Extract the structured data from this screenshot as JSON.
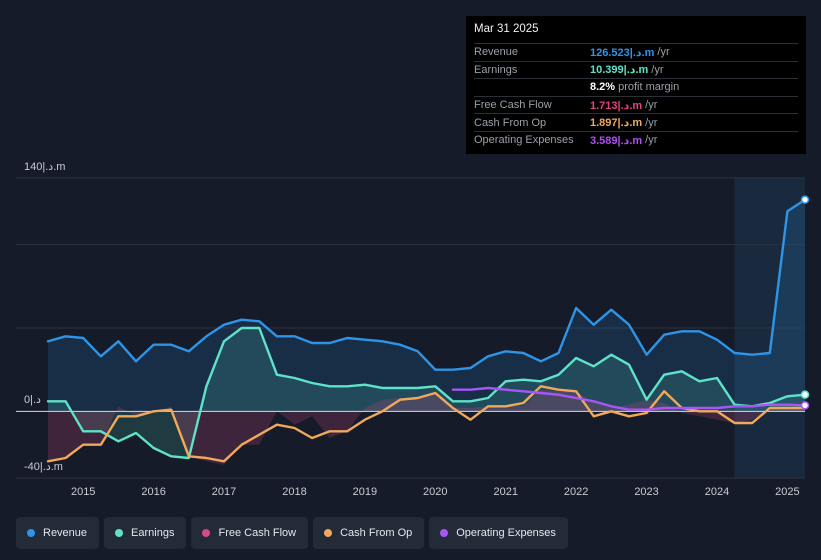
{
  "tooltip": {
    "date": "Mar 31 2025",
    "rows": [
      {
        "label": "Revenue",
        "value": "126.523|.د.m",
        "unit": "/yr",
        "color": "#2e94e8"
      },
      {
        "label": "Earnings",
        "value": "10.399|.د.m",
        "unit": "/yr",
        "color": "#5ee3c9"
      },
      {
        "label": "",
        "value": "8.2%",
        "unit": "profit margin",
        "color": "#ffffff"
      },
      {
        "label": "Free Cash Flow",
        "value": "1.713|.د.m",
        "unit": "/yr",
        "color": "#e0447e"
      },
      {
        "label": "Cash From Op",
        "value": "1.897|.د.m",
        "unit": "/yr",
        "color": "#f0a95c"
      },
      {
        "label": "Operating Expenses",
        "value": "3.589|.د.m",
        "unit": "/yr",
        "color": "#b04ff0"
      }
    ]
  },
  "legend": [
    {
      "label": "Revenue",
      "color": "#2e94e8"
    },
    {
      "label": "Earnings",
      "color": "#5ee3c9"
    },
    {
      "label": "Free Cash Flow",
      "color": "#d64a86"
    },
    {
      "label": "Cash From Op",
      "color": "#f0a95c"
    },
    {
      "label": "Operating Expenses",
      "color": "#a855f7"
    }
  ],
  "chart_data": {
    "type": "area",
    "title": "",
    "y_top_label": "140|.د.m",
    "y_zero_label": "0|.د",
    "y_bottom_label": "-40|.د.m",
    "ylim": [
      -40,
      140
    ],
    "xlim": [
      2014.5,
      2025.25
    ],
    "x_ticks": [
      "2015",
      "2016",
      "2017",
      "2018",
      "2019",
      "2020",
      "2021",
      "2022",
      "2023",
      "2024",
      "2025"
    ],
    "x_tick_values": [
      2015,
      2016,
      2017,
      2018,
      2019,
      2020,
      2021,
      2022,
      2023,
      2024,
      2025
    ],
    "forecast_start": 2024.25,
    "series": [
      {
        "name": "Revenue",
        "color": "#2e94e8",
        "fill": true,
        "x": [
          2014.5,
          2014.75,
          2015.0,
          2015.25,
          2015.5,
          2015.75,
          2016.0,
          2016.25,
          2016.5,
          2016.75,
          2017.0,
          2017.25,
          2017.5,
          2017.75,
          2018.0,
          2018.25,
          2018.5,
          2018.75,
          2019.0,
          2019.25,
          2019.5,
          2019.75,
          2020.0,
          2020.25,
          2020.5,
          2020.75,
          2021.0,
          2021.25,
          2021.5,
          2021.75,
          2022.0,
          2022.25,
          2022.5,
          2022.75,
          2023.0,
          2023.25,
          2023.5,
          2023.75,
          2024.0,
          2024.25,
          2024.5,
          2024.75,
          2025.0,
          2025.25
        ],
        "values": [
          42,
          45,
          44,
          33,
          42,
          30,
          40,
          40,
          36,
          45,
          52,
          55,
          54,
          45,
          45,
          41,
          41,
          44,
          43,
          42,
          40,
          36,
          25,
          25,
          26,
          33,
          36,
          35,
          30,
          35,
          62,
          52,
          61,
          52,
          34,
          46,
          48,
          48,
          43,
          35,
          34,
          35,
          120,
          127
        ]
      },
      {
        "name": "Earnings",
        "color": "#5ee3c9",
        "fill": true,
        "x": [
          2014.5,
          2014.75,
          2015.0,
          2015.25,
          2015.5,
          2015.75,
          2016.0,
          2016.25,
          2016.5,
          2016.75,
          2017.0,
          2017.25,
          2017.5,
          2017.75,
          2018.0,
          2018.25,
          2018.5,
          2018.75,
          2019.0,
          2019.25,
          2019.5,
          2019.75,
          2020.0,
          2020.25,
          2020.5,
          2020.75,
          2021.0,
          2021.25,
          2021.5,
          2021.75,
          2022.0,
          2022.25,
          2022.5,
          2022.75,
          2023.0,
          2023.25,
          2023.5,
          2023.75,
          2024.0,
          2024.25,
          2024.5,
          2024.75,
          2025.0,
          2025.25
        ],
        "values": [
          6,
          6,
          -12,
          -12,
          -18,
          -13,
          -22,
          -27,
          -28,
          15,
          42,
          50,
          50,
          22,
          20,
          17,
          15,
          15,
          16,
          14,
          14,
          14,
          15,
          6,
          6,
          8,
          18,
          19,
          18,
          22,
          32,
          27,
          34,
          28,
          7,
          22,
          24,
          18,
          20,
          4,
          3,
          5,
          9,
          10
        ]
      },
      {
        "name": "Free Cash Flow",
        "color": "#d64a86",
        "fill": true,
        "x": [
          2014.5,
          2014.75,
          2015.0,
          2015.25,
          2015.5,
          2015.75,
          2016.0,
          2016.25,
          2016.5,
          2016.75,
          2017.0,
          2017.25,
          2017.5,
          2017.75,
          2018.0,
          2018.25,
          2018.5,
          2018.75,
          2019.0,
          2019.25,
          2019.5,
          2019.75,
          2020.0,
          2020.25,
          2020.5,
          2020.75,
          2021.0,
          2021.25,
          2021.5,
          2021.75,
          2022.0,
          2022.25,
          2022.5,
          2022.75,
          2023.0,
          2023.25,
          2023.5,
          2023.75,
          2024.0,
          2024.25,
          2024.5,
          2024.75,
          2025.0,
          2025.25
        ],
        "values": [
          -30,
          -28,
          -20,
          -20,
          3,
          -3,
          -1,
          3,
          -27,
          -30,
          -32,
          -20,
          -20,
          0,
          -8,
          -3,
          -16,
          -12,
          2,
          7,
          8,
          8,
          11,
          2,
          2,
          3,
          3,
          3,
          13,
          12,
          12,
          5,
          2,
          4,
          7,
          5,
          -1,
          -3,
          -5,
          -7,
          -5,
          2,
          2,
          2
        ]
      },
      {
        "name": "Cash From Op",
        "color": "#f0a95c",
        "fill": false,
        "x": [
          2014.5,
          2014.75,
          2015.0,
          2015.25,
          2015.5,
          2015.75,
          2016.0,
          2016.25,
          2016.5,
          2016.75,
          2017.0,
          2017.25,
          2017.5,
          2017.75,
          2018.0,
          2018.25,
          2018.5,
          2018.75,
          2019.0,
          2019.25,
          2019.5,
          2019.75,
          2020.0,
          2020.25,
          2020.5,
          2020.75,
          2021.0,
          2021.25,
          2021.5,
          2021.75,
          2022.0,
          2022.25,
          2022.5,
          2022.75,
          2023.0,
          2023.25,
          2023.5,
          2023.75,
          2024.0,
          2024.25,
          2024.5,
          2024.75,
          2025.0,
          2025.25
        ],
        "values": [
          -30,
          -28,
          -20,
          -20,
          -3,
          -3,
          0,
          1,
          -27,
          -28,
          -30,
          -20,
          -14,
          -8,
          -10,
          -16,
          -12,
          -12,
          -5,
          0,
          7,
          8,
          11,
          2,
          -5,
          3,
          3,
          5,
          15,
          13,
          12,
          -3,
          0,
          -3,
          -1,
          12,
          2,
          0,
          0,
          -7,
          -7,
          2,
          2,
          2
        ]
      },
      {
        "name": "Operating Expenses",
        "color": "#a855f7",
        "fill": false,
        "x": [
          2020.25,
          2020.5,
          2020.75,
          2021.0,
          2021.25,
          2021.5,
          2021.75,
          2022.0,
          2022.25,
          2022.5,
          2022.75,
          2023.0,
          2023.25,
          2023.5,
          2023.75,
          2024.0,
          2024.25,
          2024.5,
          2024.75,
          2025.0,
          2025.25
        ],
        "values": [
          13,
          13,
          14,
          13,
          12,
          11,
          10,
          8,
          6,
          3,
          1,
          1,
          2,
          2,
          2,
          2,
          3,
          3,
          4,
          4,
          3.6
        ]
      }
    ]
  }
}
